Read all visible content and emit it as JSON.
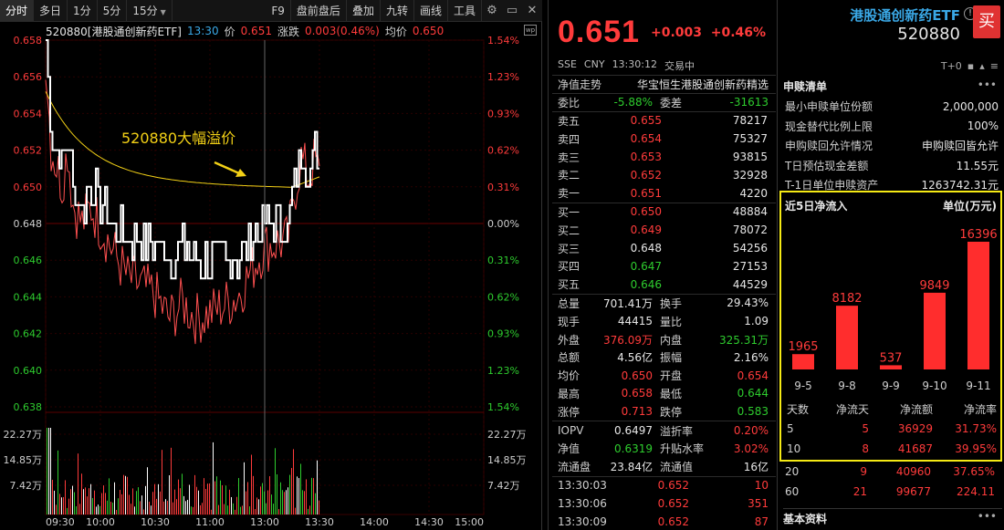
{
  "toolbar": {
    "left": [
      "分时",
      "多日",
      "1分",
      "5分",
      "15分"
    ],
    "right": [
      "F9",
      "盘前盘后",
      "叠加",
      "九转",
      "画线",
      "工具"
    ]
  },
  "info": {
    "title": "520880[港股通创新药ETF]",
    "time": "13:30",
    "price_label": "价",
    "price": "0.651",
    "chg_label": "涨跌",
    "chg": "0.003(0.46%)",
    "avg_label": "均价",
    "avg": "0.650"
  },
  "annotation": "520880大幅溢价",
  "axes": {
    "price_ticks": [
      "0.658",
      "0.656",
      "0.654",
      "0.652",
      "0.650",
      "0.648",
      "0.646",
      "0.644",
      "0.642",
      "0.640",
      "0.638"
    ],
    "pct_ticks": [
      "1.54%",
      "1.23%",
      "0.93%",
      "0.62%",
      "0.31%",
      "0.00%",
      "0.31%",
      "0.62%",
      "0.93%",
      "1.23%",
      "1.54%"
    ],
    "vol_ticks": [
      "22.27万",
      "14.85万",
      "7.42万"
    ],
    "time_ticks": [
      "09:30",
      "10:00",
      "10:30",
      "11:00",
      "13:00",
      "13:30",
      "14:00",
      "14:30",
      "15:00"
    ]
  },
  "quote": {
    "price": "0.651",
    "chg": "+0.003",
    "chg_pct": "+0.46%",
    "exchange": "SSE",
    "currency": "CNY",
    "time": "13:30:12",
    "status": "交易中",
    "nav_label": "净值走势",
    "index_name": "华宝恒生港股通创新药精选",
    "weibi_label": "委比",
    "weibi": "-5.88%",
    "weicha_label": "委差",
    "weicha": "-31613",
    "asks": [
      {
        "label": "卖五",
        "price": "0.655",
        "vol": "78217",
        "color": "red"
      },
      {
        "label": "卖四",
        "price": "0.654",
        "vol": "75327",
        "color": "red"
      },
      {
        "label": "卖三",
        "price": "0.653",
        "vol": "93815",
        "color": "red"
      },
      {
        "label": "卖二",
        "price": "0.652",
        "vol": "32928",
        "color": "red"
      },
      {
        "label": "卖一",
        "price": "0.651",
        "vol": "4220",
        "color": "red"
      }
    ],
    "bids": [
      {
        "label": "买一",
        "price": "0.650",
        "vol": "48884",
        "color": "red"
      },
      {
        "label": "买二",
        "price": "0.649",
        "vol": "78072",
        "color": "red"
      },
      {
        "label": "买三",
        "price": "0.648",
        "vol": "54256",
        "color": "white"
      },
      {
        "label": "买四",
        "price": "0.647",
        "vol": "27153",
        "color": "green"
      },
      {
        "label": "买五",
        "price": "0.646",
        "vol": "44529",
        "color": "green"
      }
    ],
    "stats": [
      {
        "a": "总量",
        "b": "701.41万",
        "bc": "white",
        "c": "换手",
        "d": "29.43%",
        "dc": "white"
      },
      {
        "a": "现手",
        "b": "44415",
        "bc": "white",
        "c": "量比",
        "d": "1.09",
        "dc": "white"
      },
      {
        "a": "外盘",
        "b": "376.09万",
        "bc": "red",
        "c": "内盘",
        "d": "325.31万",
        "dc": "green"
      },
      {
        "a": "总额",
        "b": "4.56亿",
        "bc": "white",
        "c": "振幅",
        "d": "2.16%",
        "dc": "white"
      },
      {
        "a": "均价",
        "b": "0.650",
        "bc": "red",
        "c": "开盘",
        "d": "0.654",
        "dc": "red"
      },
      {
        "a": "最高",
        "b": "0.658",
        "bc": "red",
        "c": "最低",
        "d": "0.644",
        "dc": "green"
      },
      {
        "a": "涨停",
        "b": "0.713",
        "bc": "red",
        "c": "跌停",
        "d": "0.583",
        "dc": "green"
      }
    ],
    "stats2": [
      {
        "a": "IOPV",
        "b": "0.6497",
        "bc": "white",
        "c": "溢折率",
        "d": "0.20%",
        "dc": "red"
      },
      {
        "a": "净值",
        "b": "0.6319",
        "bc": "green",
        "c": "升贴水率",
        "d": "3.02%",
        "dc": "red"
      },
      {
        "a": "流通盘",
        "b": "23.84亿",
        "bc": "white",
        "c": "流通值",
        "d": "16亿",
        "dc": "white"
      }
    ],
    "trades": [
      {
        "t": "13:30:03",
        "p": "0.652",
        "v": "10"
      },
      {
        "t": "13:30:06",
        "p": "0.652",
        "v": "351"
      },
      {
        "t": "13:30:09",
        "p": "0.652",
        "v": "87"
      }
    ]
  },
  "etf": {
    "name": "港股通创新药ETF",
    "code": "520880",
    "buy_label": "买",
    "icon_text": "T+0",
    "sub_title": "申赎清单",
    "more": "•••",
    "sub_rows": [
      {
        "k": "最小申赎单位份额",
        "v": "2,000,000"
      },
      {
        "k": "现金替代比例上限",
        "v": "100%"
      },
      {
        "k": "申购赎回允许情况",
        "v": "申购赎回皆允许"
      },
      {
        "k": "T日预估现金差额",
        "v": "11.55元"
      },
      {
        "k": "T-1日单位申赎资产",
        "v": "1263742.31元"
      }
    ],
    "flow_title": "近5日净流入",
    "flow_unit": "单位(万元)",
    "flow_headers": [
      "天数",
      "净流天",
      "净流额",
      "净流率"
    ],
    "flow_rows": [
      {
        "d": "5",
        "n": "5",
        "a": "36929",
        "r": "31.73%"
      },
      {
        "d": "10",
        "n": "8",
        "a": "41687",
        "r": "39.95%"
      }
    ],
    "extra_rows": [
      {
        "d": "20",
        "n": "9",
        "a": "40960",
        "r": "37.65%"
      },
      {
        "d": "60",
        "n": "21",
        "a": "99677",
        "r": "224.11"
      }
    ],
    "basic_title": "基本资料"
  },
  "chart_data": {
    "type": "bar",
    "title": "近5日净流入",
    "ylabel": "单位(万元)",
    "categories": [
      "9-5",
      "9-8",
      "9-9",
      "9-10",
      "9-11"
    ],
    "values": [
      1965,
      8182,
      537,
      9849,
      16396
    ],
    "value_labels": [
      "1965",
      "8182",
      "537",
      "9849",
      "16396"
    ],
    "ylim": [
      0,
      16396
    ],
    "color": "#ff2d2d"
  },
  "colors": {
    "up": "#ff3b3b",
    "down": "#2ecc2e",
    "price_line": "#ffffff",
    "avg_line": "#f2d016",
    "nav_line": "#ff5050",
    "highlight": "#f5ea14",
    "etf_name": "#3aa8e6"
  }
}
